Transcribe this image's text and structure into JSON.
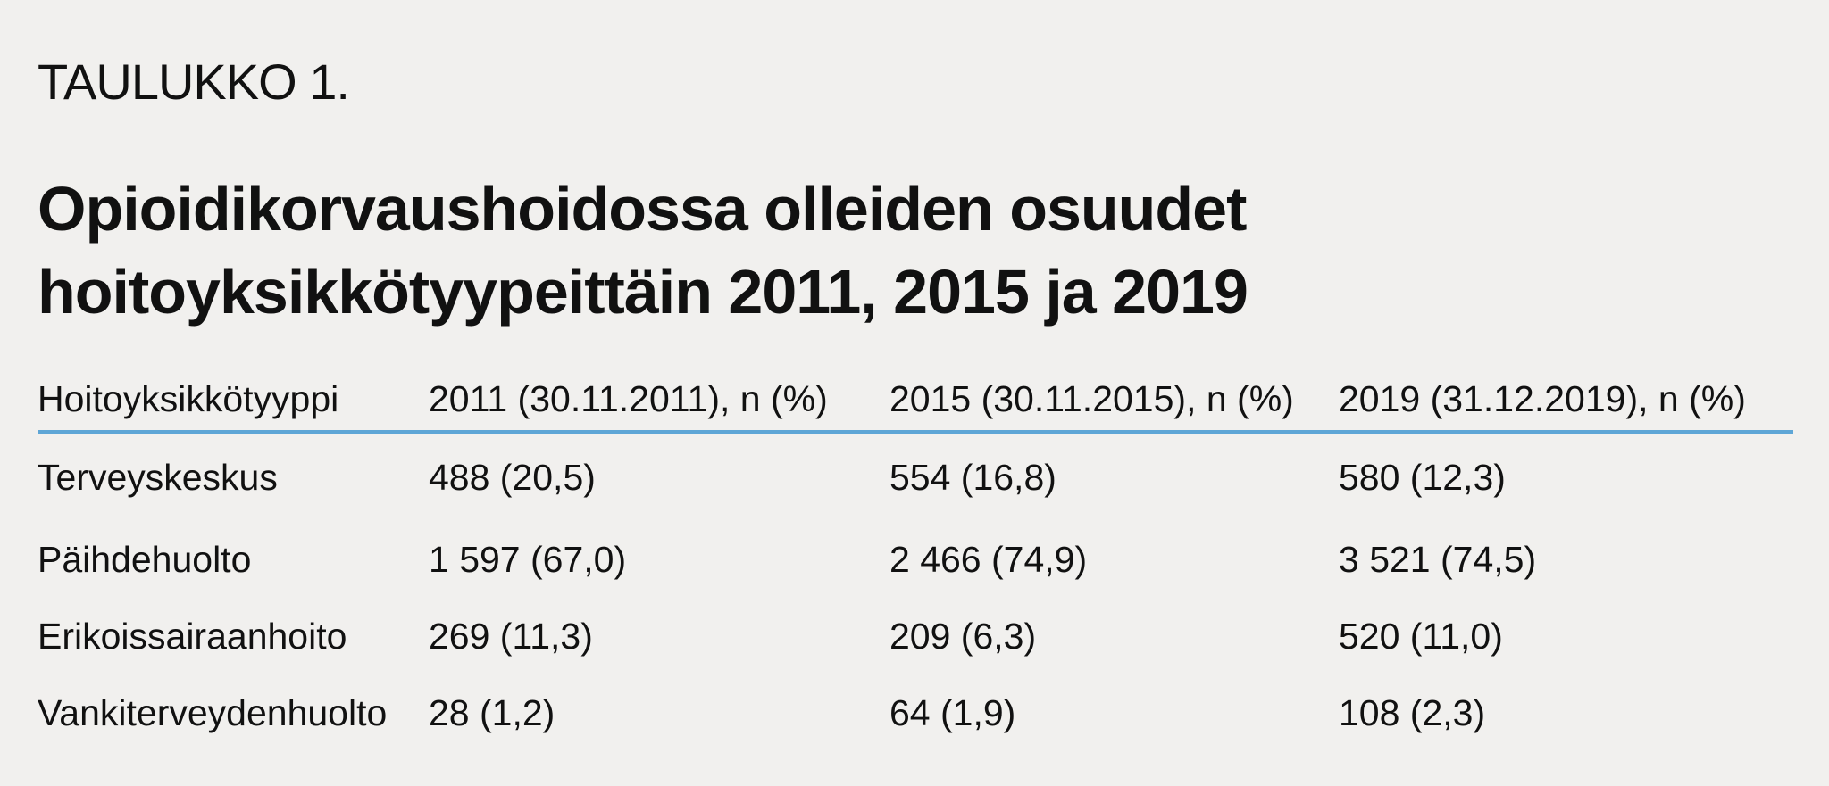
{
  "chart_data": {
    "type": "table",
    "label": "TAULUKKO 1.",
    "title_lines": [
      "Opioidikorvaushoidossa olleiden osuudet",
      "hoitoyksikkötyypeittäin 2011, 2015 ja 2019"
    ],
    "columns": [
      "Hoitoyksikkötyyppi",
      "2011 (30.11.2011), n (%)",
      "2015 (30.11.2015), n (%)",
      "2019 (31.12.2019), n (%)"
    ],
    "rows": [
      [
        "Terveyskeskus",
        "488 (20,5)",
        "554 (16,8)",
        "580 (12,3)"
      ],
      [
        "Päihdehuolto",
        "1 597 (67,0)",
        "2 466 (74,9)",
        "3 521 (74,5)"
      ],
      [
        "Erikoissairaanhoito",
        "269 (11,3)",
        "209 (6,3)",
        "520 (11,0)"
      ],
      [
        "Vankiterveydenhuolto",
        "28 (1,2)",
        "64 (1,9)",
        "108 (2,3)"
      ]
    ],
    "colors": {
      "background": "#f1f0ee",
      "text": "#111111",
      "header_rule": "#5ea6d6"
    }
  }
}
